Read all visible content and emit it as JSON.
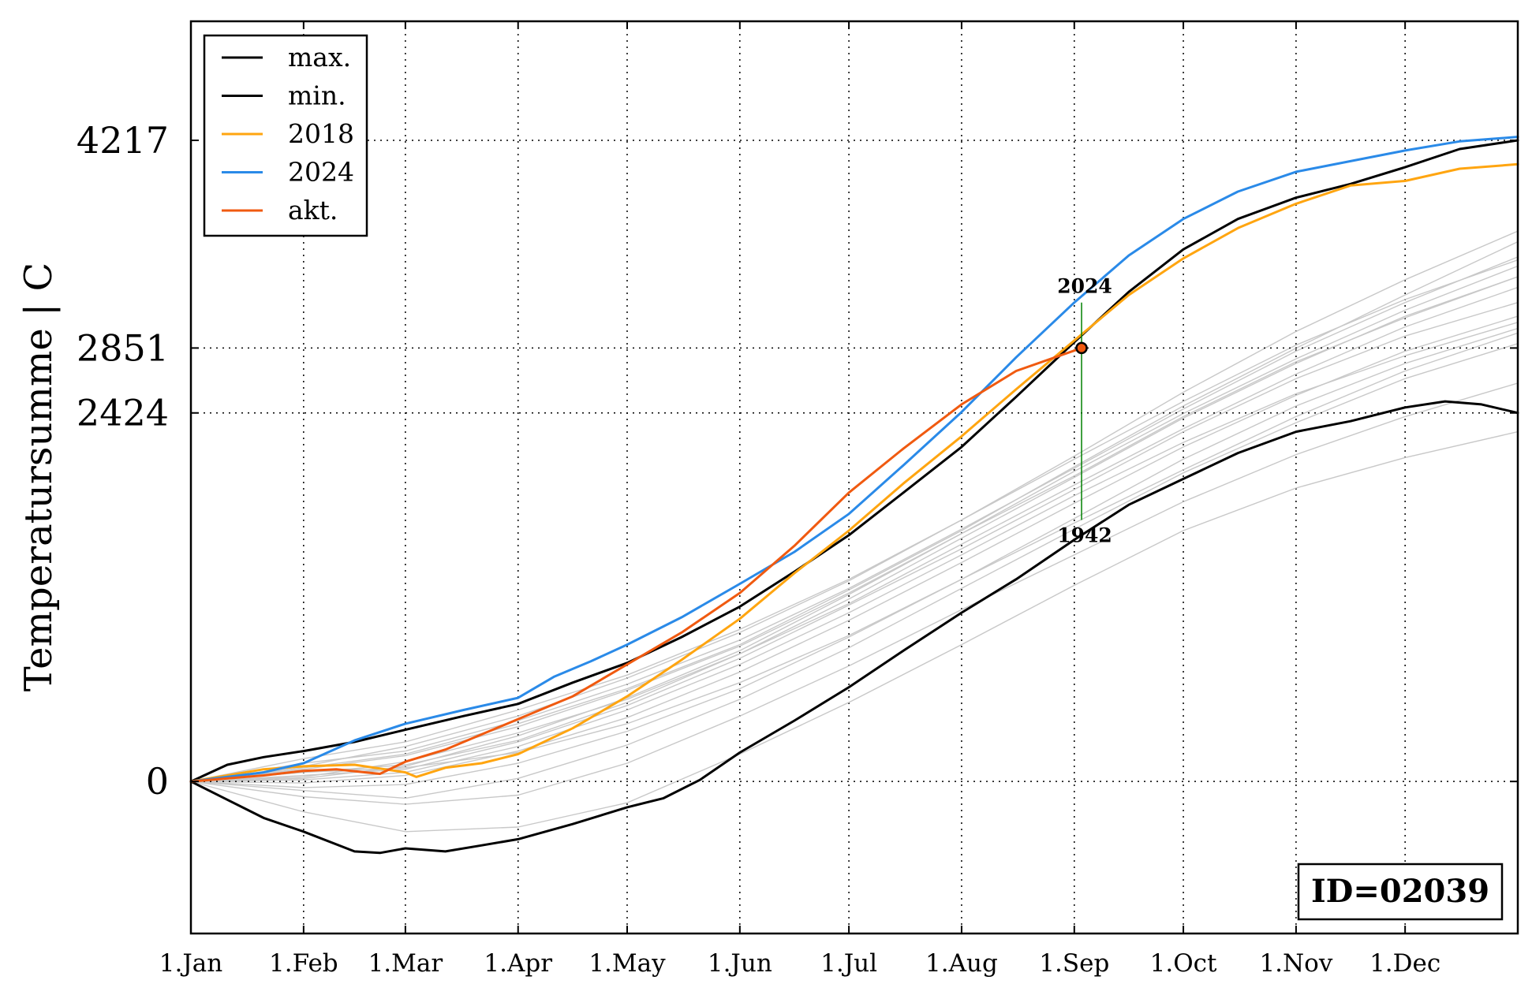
{
  "chart_data": {
    "type": "line",
    "title": "",
    "xlabel": "",
    "ylabel": "Temperatursumme | C",
    "xlim": [
      0,
      365
    ],
    "ylim": [
      -1000,
      5000
    ],
    "grid": "dotted",
    "legend_position": "top-left",
    "x_ticks": [
      {
        "label": "1.Jan",
        "day": 0
      },
      {
        "label": "1.Feb",
        "day": 31
      },
      {
        "label": "1.Mar",
        "day": 59
      },
      {
        "label": "1.Apr",
        "day": 90
      },
      {
        "label": "1.May",
        "day": 120
      },
      {
        "label": "1.Jun",
        "day": 151
      },
      {
        "label": "1.Jul",
        "day": 181
      },
      {
        "label": "1.Aug",
        "day": 212
      },
      {
        "label": "1.Sep",
        "day": 243
      },
      {
        "label": "1.Oct",
        "day": 273
      },
      {
        "label": "1.Nov",
        "day": 304
      },
      {
        "label": "1.Dec",
        "day": 334
      }
    ],
    "y_ticks": [
      {
        "label": "0",
        "value": 0
      },
      {
        "label": "2424",
        "value": 2424
      },
      {
        "label": "2851",
        "value": 2851
      },
      {
        "label": "4217",
        "value": 4217
      }
    ],
    "series": [
      {
        "name": "max.",
        "color": "#000000",
        "width": 3,
        "x": [
          0,
          10,
          20,
          31,
          45,
          59,
          75,
          90,
          105,
          120,
          135,
          151,
          166,
          181,
          196,
          212,
          227,
          243,
          258,
          273,
          288,
          304,
          319,
          334,
          349,
          365
        ],
        "y": [
          0,
          110,
          160,
          200,
          260,
          340,
          430,
          510,
          650,
          780,
          950,
          1150,
          1380,
          1620,
          1900,
          2200,
          2530,
          2890,
          3220,
          3500,
          3700,
          3840,
          3930,
          4040,
          4160,
          4217
        ]
      },
      {
        "name": "min.",
        "color": "#000000",
        "width": 3,
        "x": [
          0,
          10,
          20,
          31,
          45,
          52,
          59,
          70,
          80,
          90,
          105,
          120,
          130,
          140,
          151,
          166,
          181,
          196,
          212,
          227,
          243,
          258,
          273,
          288,
          304,
          319,
          334,
          345,
          355,
          365
        ],
        "y": [
          0,
          -120,
          -240,
          -330,
          -460,
          -470,
          -440,
          -460,
          -420,
          -380,
          -280,
          -170,
          -110,
          10,
          190,
          400,
          620,
          860,
          1110,
          1330,
          1590,
          1820,
          1990,
          2160,
          2300,
          2370,
          2460,
          2500,
          2480,
          2424
        ]
      },
      {
        "name": "2018",
        "color": "#ffa510",
        "width": 3,
        "x": [
          0,
          10,
          20,
          31,
          45,
          59,
          62,
          70,
          80,
          90,
          105,
          120,
          135,
          151,
          166,
          181,
          196,
          212,
          227,
          243,
          258,
          273,
          288,
          304,
          319,
          334,
          349,
          365
        ],
        "y": [
          0,
          40,
          80,
          100,
          110,
          60,
          30,
          90,
          120,
          180,
          350,
          560,
          800,
          1070,
          1370,
          1650,
          1960,
          2270,
          2580,
          2900,
          3200,
          3440,
          3640,
          3800,
          3920,
          3950,
          4030,
          4060
        ]
      },
      {
        "name": "2024",
        "color": "#2a8ae8",
        "width": 3,
        "x": [
          0,
          10,
          20,
          31,
          45,
          59,
          75,
          90,
          100,
          110,
          120,
          135,
          151,
          166,
          181,
          196,
          212,
          227,
          243,
          258,
          273,
          288,
          304,
          319,
          334,
          349,
          365
        ],
        "y": [
          0,
          30,
          60,
          120,
          270,
          380,
          470,
          550,
          690,
          790,
          900,
          1080,
          1300,
          1510,
          1760,
          2080,
          2430,
          2790,
          3150,
          3460,
          3700,
          3880,
          4010,
          4080,
          4150,
          4210,
          4240
        ]
      },
      {
        "name": "akt.",
        "color": "#f05a10",
        "width": 3,
        "x": [
          0,
          10,
          20,
          31,
          40,
          48,
          52,
          59,
          70,
          80,
          90,
          105,
          120,
          135,
          151,
          166,
          181,
          196,
          212,
          227,
          245
        ],
        "y": [
          0,
          20,
          40,
          70,
          80,
          60,
          50,
          130,
          210,
          310,
          410,
          560,
          770,
          980,
          1240,
          1550,
          1900,
          2190,
          2480,
          2700,
          2851
        ]
      }
    ],
    "background_series": [
      {
        "x": [
          0,
          31,
          59,
          90,
          120,
          151,
          181,
          212,
          243,
          273,
          304,
          334,
          365
        ],
        "y": [
          0,
          60,
          90,
          190,
          380,
          650,
          960,
          1330,
          1700,
          2050,
          2400,
          2700,
          2950
        ]
      },
      {
        "x": [
          0,
          31,
          59,
          90,
          120,
          151,
          181,
          212,
          243,
          273,
          304,
          334,
          365
        ],
        "y": [
          0,
          -100,
          -150,
          -90,
          120,
          430,
          760,
          1130,
          1490,
          1840,
          2150,
          2400,
          2620
        ]
      },
      {
        "x": [
          0,
          31,
          59,
          90,
          120,
          151,
          181,
          212,
          243,
          273,
          304,
          334,
          365
        ],
        "y": [
          0,
          -200,
          -330,
          -300,
          -140,
          180,
          520,
          900,
          1290,
          1650,
          1930,
          2130,
          2300
        ]
      },
      {
        "x": [
          0,
          31,
          59,
          90,
          120,
          151,
          181,
          212,
          243,
          273,
          304,
          334,
          365
        ],
        "y": [
          0,
          30,
          130,
          320,
          540,
          840,
          1170,
          1560,
          1950,
          2320,
          2680,
          2990,
          3250
        ]
      },
      {
        "x": [
          0,
          31,
          59,
          90,
          120,
          151,
          181,
          212,
          243,
          273,
          304,
          334,
          365
        ],
        "y": [
          0,
          80,
          170,
          360,
          600,
          890,
          1240,
          1630,
          2010,
          2400,
          2760,
          3050,
          3320
        ]
      },
      {
        "x": [
          0,
          31,
          59,
          90,
          120,
          151,
          181,
          212,
          243,
          273,
          304,
          334,
          365
        ],
        "y": [
          0,
          -40,
          -20,
          120,
          330,
          610,
          950,
          1330,
          1730,
          2120,
          2470,
          2750,
          2980
        ]
      },
      {
        "x": [
          0,
          31,
          59,
          90,
          120,
          151,
          181,
          212,
          243,
          273,
          304,
          334,
          365
        ],
        "y": [
          0,
          150,
          260,
          470,
          700,
          1000,
          1330,
          1720,
          2120,
          2500,
          2870,
          3170,
          3430
        ]
      },
      {
        "x": [
          0,
          31,
          59,
          90,
          120,
          151,
          181,
          212,
          243,
          273,
          304,
          334,
          365
        ],
        "y": [
          0,
          10,
          60,
          230,
          470,
          770,
          1110,
          1490,
          1880,
          2230,
          2550,
          2800,
          3020
        ]
      },
      {
        "x": [
          0,
          31,
          59,
          90,
          120,
          151,
          181,
          212,
          243,
          273,
          304,
          334,
          365
        ],
        "y": [
          0,
          60,
          110,
          270,
          520,
          840,
          1200,
          1600,
          2000,
          2390,
          2750,
          3060,
          3320
        ]
      },
      {
        "x": [
          0,
          31,
          59,
          90,
          120,
          151,
          181,
          212,
          243,
          273,
          304,
          334,
          365
        ],
        "y": [
          0,
          -60,
          -110,
          20,
          240,
          540,
          880,
          1270,
          1660,
          2030,
          2360,
          2650,
          2880
        ]
      },
      {
        "x": [
          0,
          31,
          59,
          90,
          120,
          151,
          181,
          212,
          243,
          273,
          304,
          334,
          365
        ],
        "y": [
          0,
          120,
          200,
          400,
          640,
          930,
          1270,
          1660,
          2060,
          2450,
          2830,
          3150,
          3450
        ]
      },
      {
        "x": [
          0,
          31,
          59,
          90,
          120,
          151,
          181,
          212,
          243,
          273,
          304,
          334,
          365
        ],
        "y": [
          0,
          40,
          80,
          260,
          500,
          810,
          1160,
          1530,
          1920,
          2300,
          2650,
          2930,
          3150
        ]
      },
      {
        "x": [
          0,
          31,
          59,
          90,
          120,
          151,
          181,
          212,
          243,
          273,
          304,
          334,
          365
        ],
        "y": [
          0,
          90,
          180,
          380,
          610,
          900,
          1260,
          1650,
          2070,
          2470,
          2850,
          3200,
          3550
        ]
      },
      {
        "x": [
          0,
          31,
          59,
          90,
          120,
          151,
          181,
          212,
          243,
          273,
          304,
          334,
          365
        ],
        "y": [
          0,
          -10,
          40,
          200,
          420,
          720,
          1060,
          1440,
          1830,
          2200,
          2540,
          2830,
          3060
        ]
      },
      {
        "x": [
          0,
          31,
          59,
          90,
          120,
          151,
          181,
          212,
          243,
          273,
          304,
          334,
          365
        ],
        "y": [
          0,
          100,
          230,
          430,
          680,
          980,
          1320,
          1720,
          2140,
          2560,
          2960,
          3300,
          3620
        ]
      },
      {
        "x": [
          0,
          31,
          59,
          90,
          120,
          151,
          181,
          212,
          243,
          273,
          304,
          334,
          365
        ],
        "y": [
          0,
          20,
          100,
          300,
          550,
          860,
          1230,
          1630,
          2040,
          2420,
          2780,
          3100,
          3390
        ]
      }
    ],
    "current_marker": {
      "day": 245,
      "value": 2851,
      "color": "#f05a10"
    },
    "annotations": [
      {
        "label": "2024",
        "day": 245,
        "value": 3150,
        "position": "above"
      },
      {
        "label": "1942",
        "day": 245,
        "value": 1720,
        "position": "below"
      }
    ],
    "range_line": {
      "day": 245,
      "from": 1720,
      "to": 3150,
      "color": "#008000"
    },
    "reference_lines": [
      0,
      2424,
      2851,
      4217
    ],
    "id_box": "ID=02039"
  }
}
